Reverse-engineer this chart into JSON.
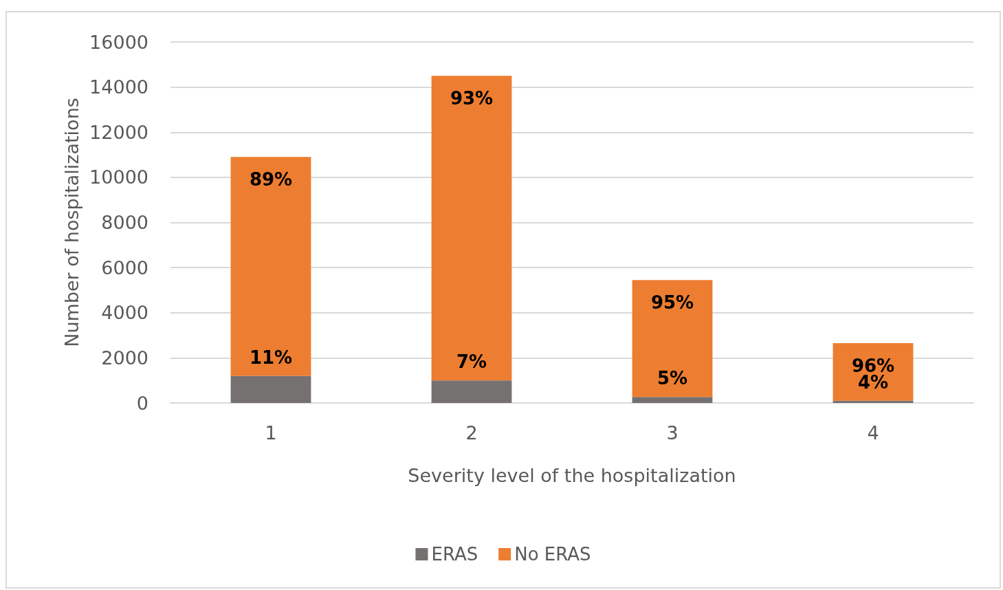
{
  "chart_data": {
    "type": "bar",
    "stacked": true,
    "xlabel": "Severity level of the hospitalization",
    "ylabel": "Number of hospitalizations",
    "categories": [
      "1",
      "2",
      "3",
      "4"
    ],
    "series": [
      {
        "name": "ERAS",
        "color": "#767171",
        "values": [
          1200,
          1000,
          270,
          100
        ]
      },
      {
        "name": "No ERAS",
        "color": "#ed7d31",
        "values": [
          9700,
          13500,
          5180,
          2550
        ]
      }
    ],
    "annotations": [
      {
        "text": "11%",
        "x": "1",
        "y": 1200
      },
      {
        "text": "7%",
        "x": "2",
        "y": 1000
      },
      {
        "text": "5%",
        "x": "3",
        "y": 270
      },
      {
        "text": "4%",
        "x": "4",
        "y": 100
      },
      {
        "text": "89%",
        "x": "1",
        "y": 10900
      },
      {
        "text": "93%",
        "x": "2",
        "y": 14500
      },
      {
        "text": "95%",
        "x": "3",
        "y": 5450
      },
      {
        "text": "96%",
        "x": "4",
        "y": 2650
      }
    ],
    "ylim": [
      0,
      16000
    ],
    "yticks": [
      0,
      2000,
      4000,
      6000,
      8000,
      10000,
      12000,
      14000,
      16000
    ],
    "grid": "y",
    "legend": "bottom"
  }
}
